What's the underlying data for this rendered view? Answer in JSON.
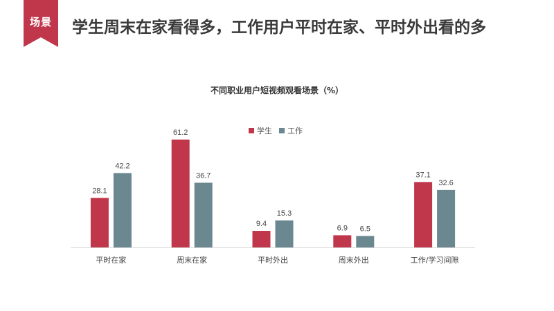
{
  "header": {
    "tag": "场景",
    "headline": "学生周末在家看得多，工作用户平时在家、平时外出看的多"
  },
  "chart_data": {
    "type": "bar",
    "title": "不同职业用户短视频观看场景（%）",
    "categories": [
      "平时在家",
      "周末在家",
      "平时外出",
      "周末外出",
      "工作/学习间隙"
    ],
    "series": [
      {
        "name": "学生",
        "values": [
          28.1,
          61.2,
          9.4,
          6.9,
          37.1
        ],
        "color": "#c0364b"
      },
      {
        "name": "工作",
        "values": [
          42.2,
          36.7,
          15.3,
          6.5,
          32.6
        ],
        "color": "#6b8790"
      }
    ],
    "ylim": [
      0,
      70
    ],
    "grid": false,
    "legend_position": "top-center",
    "xlabel": "",
    "ylabel": ""
  },
  "colors": {
    "accent": "#c0364b",
    "series_student": "#c0364b",
    "series_work": "#6b8790"
  }
}
